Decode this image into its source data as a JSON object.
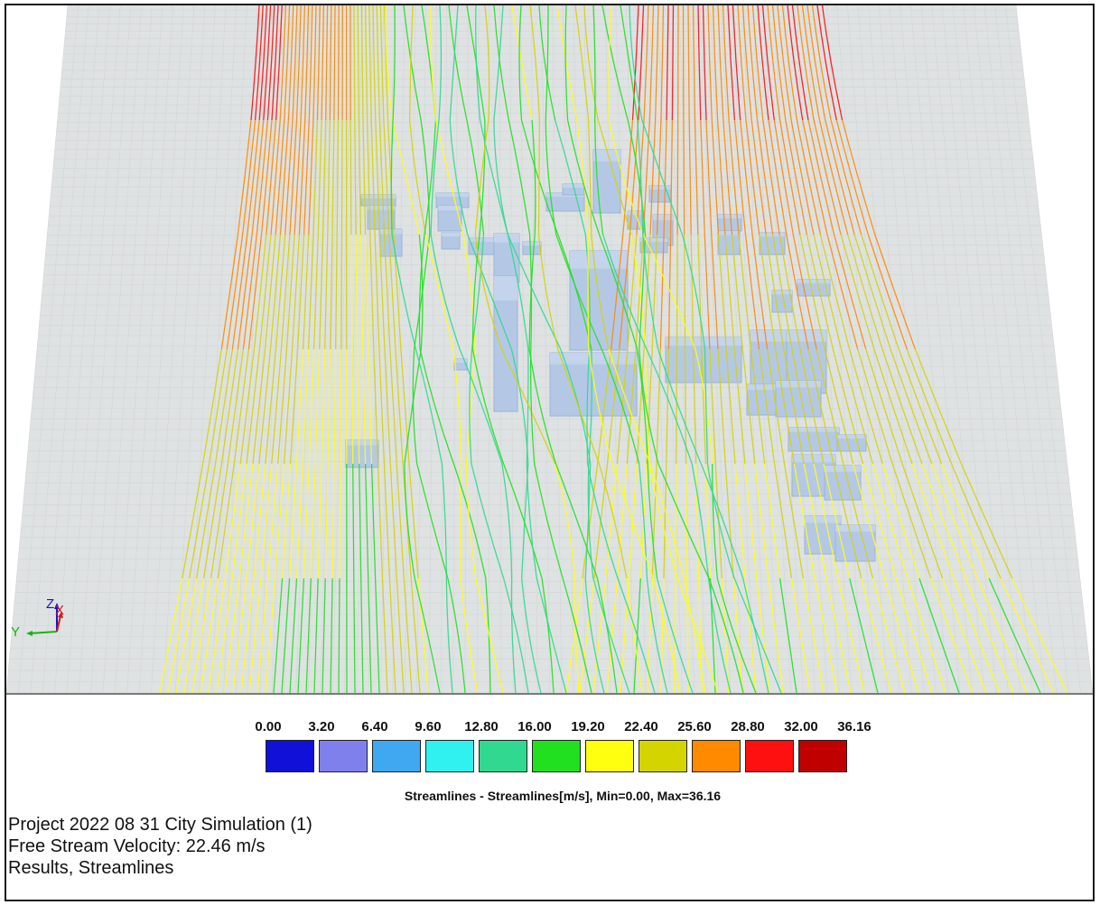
{
  "legend": {
    "ticks": [
      "0.00",
      "3.20",
      "6.40",
      "9.60",
      "12.80",
      "16.00",
      "19.20",
      "22.40",
      "25.60",
      "28.80",
      "32.00",
      "36.16"
    ],
    "swatch_colors": [
      "#1010d8",
      "#8080ec",
      "#40a8f0",
      "#30f0f0",
      "#30d890",
      "#20e020",
      "#ffff10",
      "#d4d400",
      "#ff8a00",
      "#ff1010",
      "#c00000"
    ],
    "caption": "Streamlines  - Streamlines[m/s], Min=0.00, Max=36.16"
  },
  "info": {
    "project": "Project 2022 08 31 City Simulation (1)",
    "velocity": "Free Stream Velocity: 22.46 m/s",
    "results": "Results, Streamlines"
  },
  "axes": {
    "z": "Z",
    "x": "X",
    "y": "Y"
  },
  "colors": {
    "ground": "#dfe2e2",
    "building": "#b4c8e6",
    "building_edge": "#9bb3d6"
  }
}
